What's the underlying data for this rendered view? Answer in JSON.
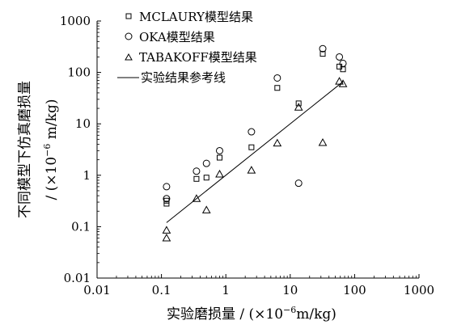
{
  "chart_data": {
    "type": "scatter",
    "x_scale": "log",
    "y_scale": "log",
    "xlim": [
      0.01,
      1000
    ],
    "ylim": [
      0.01,
      1000
    ],
    "x_ticks": [
      "0.01",
      "0.1",
      "1",
      "10",
      "100",
      "1000"
    ],
    "y_ticks": [
      "0.01",
      "0.1",
      "1",
      "10",
      "100",
      "1000"
    ],
    "xlabel": {
      "text": "实验磨损量 / (×10",
      "sup": "−6",
      "tail": "m/kg)"
    },
    "ylabel": {
      "line1": "不同模型下仿真磨损量",
      "line2_pre": "/ (×10",
      "line2_sup": "−6",
      "line2_post": " m/kg)"
    },
    "legend_position": "top-right",
    "grid": false,
    "series": [
      {
        "name": "MCLAURY模型结果",
        "marker": "square",
        "points": [
          [
            0.12,
            0.28
          ],
          [
            0.12,
            0.32
          ],
          [
            0.35,
            0.85
          ],
          [
            0.5,
            0.9
          ],
          [
            0.8,
            2.2
          ],
          [
            2.5,
            3.5
          ],
          [
            6.3,
            50
          ],
          [
            13.5,
            25
          ],
          [
            32,
            230
          ],
          [
            58,
            130
          ],
          [
            66,
            115
          ]
        ]
      },
      {
        "name": "OKA模型结果",
        "marker": "circle",
        "points": [
          [
            0.12,
            0.6
          ],
          [
            0.12,
            0.35
          ],
          [
            0.35,
            1.2
          ],
          [
            0.5,
            1.7
          ],
          [
            0.8,
            3.0
          ],
          [
            2.5,
            7.0
          ],
          [
            6.3,
            78
          ],
          [
            13.5,
            0.7
          ],
          [
            32,
            290
          ],
          [
            58,
            200
          ],
          [
            66,
            150
          ]
        ]
      },
      {
        "name": "TABAKOFF模型结果",
        "marker": "triangle",
        "points": [
          [
            0.12,
            0.06
          ],
          [
            0.12,
            0.085
          ],
          [
            0.35,
            0.35
          ],
          [
            0.5,
            0.21
          ],
          [
            0.8,
            1.05
          ],
          [
            2.5,
            1.25
          ],
          [
            6.3,
            4.2
          ],
          [
            13.5,
            21
          ],
          [
            32,
            4.3
          ],
          [
            58,
            67
          ],
          [
            66,
            60
          ]
        ]
      }
    ],
    "reference_line": {
      "name": "实验结果参考线",
      "points": [
        [
          0.12,
          0.12
        ],
        [
          66,
          66
        ]
      ]
    }
  }
}
